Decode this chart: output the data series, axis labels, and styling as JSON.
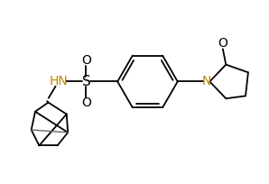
{
  "bg_color": "#ffffff",
  "line_color": "#000000",
  "hn_color": "#b8860b",
  "n_color": "#b8860b",
  "fig_width": 2.98,
  "fig_height": 2.04,
  "dpi": 100,
  "xlim": [
    0,
    10
  ],
  "ylim": [
    0,
    7
  ]
}
